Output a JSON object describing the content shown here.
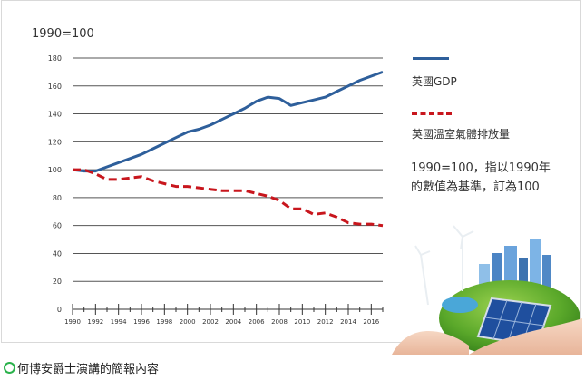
{
  "chart_data": {
    "type": "line",
    "ylabel": "1990=100",
    "ylim": [
      0,
      180
    ],
    "yticks": [
      0,
      20,
      40,
      60,
      80,
      100,
      120,
      140,
      160,
      180
    ],
    "xlim": [
      1990,
      2017
    ],
    "xticks": [
      1990,
      1992,
      1994,
      1996,
      1998,
      2000,
      2002,
      2004,
      2006,
      2008,
      2010,
      2012,
      2014,
      2016
    ],
    "grid": true,
    "series": [
      {
        "name": "英國GDP",
        "color": "#2e5f9b",
        "style": "solid",
        "x": [
          1990,
          1991,
          1992,
          1993,
          1994,
          1995,
          1996,
          1997,
          1998,
          1999,
          2000,
          2001,
          2002,
          2003,
          2004,
          2005,
          2006,
          2007,
          2008,
          2009,
          2010,
          2011,
          2012,
          2013,
          2014,
          2015,
          2016,
          2017
        ],
        "values": [
          100,
          99,
          99,
          102,
          105,
          108,
          111,
          115,
          119,
          123,
          127,
          129,
          132,
          136,
          140,
          144,
          149,
          152,
          151,
          146,
          148,
          150,
          152,
          156,
          160,
          164,
          167,
          170
        ]
      },
      {
        "name": "英國溫室氣體排放量",
        "color": "#c8161d",
        "style": "dashed",
        "x": [
          1990,
          1991,
          1992,
          1993,
          1994,
          1995,
          1996,
          1997,
          1998,
          1999,
          2000,
          2001,
          2002,
          2003,
          2004,
          2005,
          2006,
          2007,
          2008,
          2009,
          2010,
          2011,
          2012,
          2013,
          2014,
          2015,
          2016,
          2017
        ],
        "values": [
          100,
          100,
          97,
          93,
          93,
          94,
          95,
          92,
          90,
          88,
          88,
          87,
          86,
          85,
          85,
          85,
          83,
          81,
          78,
          72,
          72,
          68,
          69,
          66,
          62,
          61,
          61,
          60
        ]
      }
    ],
    "legend_position": "right"
  },
  "note": {
    "line1": "1990=100，指以1990年",
    "line2": "的數值為基準，訂為100"
  },
  "caption": "何博安爵士演講的簡報內容",
  "illustration": {
    "description_icon": "globe-in-hands-with-wind-turbines-solar-panel-and-city"
  }
}
